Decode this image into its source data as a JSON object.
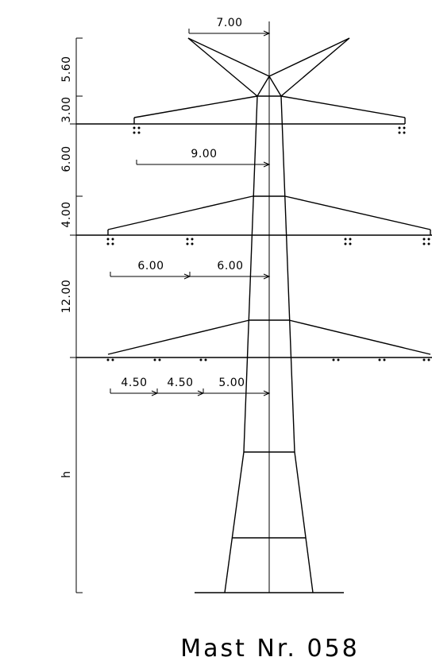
{
  "title": "Mast Nr. 058",
  "vertical_dimensions": {
    "top": "5.60",
    "upper_arm_gap": "3.00",
    "arm_1_to_2": "6.00",
    "arm_2_height": "4.00",
    "arm_2_to_3": "12.00",
    "base": "h"
  },
  "horizontal_dimensions": {
    "peak_half_width": "7.00",
    "upper_arm": "9.00",
    "middle_arm_outer": "6.00",
    "middle_arm_inner": "6.00",
    "lower_arm_outer": "4.50",
    "lower_arm_middle": "4.50",
    "lower_arm_inner": "5.00"
  }
}
